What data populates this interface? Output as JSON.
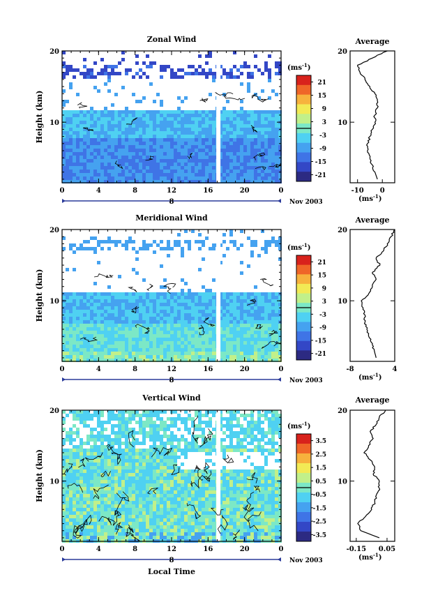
{
  "figure": {
    "xlabel": "Local Time",
    "ylabel": "Height (km)",
    "date_label": "Nov 2003",
    "day_label": "8",
    "unit_label": "(ms",
    "unit_exp": "-1",
    "unit_close": ")",
    "avg_title": "Average",
    "colorscale": [
      "#2c2a82",
      "#3347c6",
      "#3f74e6",
      "#45a2f0",
      "#4fd1f2",
      "#7ce8c6",
      "#c1f08a",
      "#f2ea55",
      "#f7b23d",
      "#ef6628",
      "#d8221c"
    ]
  },
  "chart_data": [
    {
      "type": "heatmap",
      "title": "Zonal Wind",
      "x_ticks": [
        "0",
        "4",
        "8",
        "12",
        "16",
        "20",
        "0"
      ],
      "y_ticks": [
        "10",
        "20"
      ],
      "xlim": [
        0,
        24
      ],
      "ylim": [
        1.5,
        20
      ],
      "colorbar": {
        "ticks": [
          "21",
          "15",
          "9",
          "3",
          "-3",
          "-9",
          "-15",
          "-21"
        ],
        "range": [
          -24,
          24
        ],
        "unit": "ms-1"
      },
      "average": {
        "title": "Average",
        "x_ticks": [
          "-10",
          "0"
        ],
        "y_ticks": [
          "10",
          "20"
        ],
        "xlim": [
          -13,
          5
        ],
        "ylim": [
          1.5,
          20
        ],
        "profile": [
          [
            -2,
            2
          ],
          [
            -3,
            3
          ],
          [
            -4,
            4
          ],
          [
            -5,
            5
          ],
          [
            -6,
            6
          ],
          [
            -6,
            7
          ],
          [
            -5,
            8
          ],
          [
            -4,
            9
          ],
          [
            -3,
            10
          ],
          [
            -3,
            11
          ],
          [
            -2,
            12
          ],
          [
            -2,
            13
          ],
          [
            -3,
            14
          ],
          [
            -5,
            15
          ],
          [
            -7,
            16
          ],
          [
            -9,
            17
          ],
          [
            -10,
            18
          ],
          [
            -4,
            19
          ],
          [
            2,
            20
          ]
        ],
        "xlabel": "(ms-1)"
      }
    },
    {
      "type": "heatmap",
      "title": "Meridional Wind",
      "x_ticks": [
        "0",
        "4",
        "8",
        "12",
        "16",
        "20",
        "0"
      ],
      "y_ticks": [
        "10",
        "20"
      ],
      "xlim": [
        0,
        24
      ],
      "ylim": [
        1.5,
        20
      ],
      "colorbar": {
        "ticks": [
          "21",
          "15",
          "9",
          "3",
          "-3",
          "-9",
          "-15",
          "-21"
        ],
        "range": [
          -24,
          24
        ],
        "unit": "ms-1"
      },
      "average": {
        "title": "Average",
        "x_ticks": [
          "-8",
          "4"
        ],
        "y_ticks": [
          "10",
          "20"
        ],
        "xlim": [
          -8,
          4
        ],
        "ylim": [
          1.5,
          20
        ],
        "profile": [
          [
            -1,
            2
          ],
          [
            -1.5,
            3
          ],
          [
            -2,
            4
          ],
          [
            -3,
            5
          ],
          [
            -3.5,
            6
          ],
          [
            -4,
            7
          ],
          [
            -4,
            8
          ],
          [
            -4.5,
            9
          ],
          [
            -5,
            10
          ],
          [
            -3,
            11
          ],
          [
            -2,
            12
          ],
          [
            -1,
            13
          ],
          [
            -2,
            14
          ],
          [
            0,
            15
          ],
          [
            -1,
            16
          ],
          [
            1,
            17
          ],
          [
            2,
            18
          ],
          [
            3,
            19
          ],
          [
            4,
            20
          ]
        ],
        "xlabel": "(ms-1)"
      }
    },
    {
      "type": "heatmap",
      "title": "Vertical Wind",
      "x_ticks": [
        "0",
        "4",
        "8",
        "12",
        "16",
        "20",
        "0"
      ],
      "y_ticks": [
        "10",
        "20"
      ],
      "xlim": [
        0,
        24
      ],
      "ylim": [
        1.5,
        20
      ],
      "colorbar": {
        "ticks": [
          "3.5",
          "2.5",
          "1.5",
          "0.5",
          "-0.5",
          "-1.5",
          "-2.5",
          "-3.5"
        ],
        "range": [
          -4,
          4
        ],
        "unit": "ms-1"
      },
      "average": {
        "title": "Average",
        "x_ticks": [
          "-0.15",
          "0.05"
        ],
        "y_ticks": [
          "10",
          "20"
        ],
        "xlim": [
          -0.19,
          0.1
        ],
        "ylim": [
          1.5,
          20
        ],
        "profile": [
          [
            0.0,
            2
          ],
          [
            -0.12,
            3
          ],
          [
            -0.14,
            4
          ],
          [
            -0.09,
            5
          ],
          [
            -0.05,
            6
          ],
          [
            -0.03,
            7
          ],
          [
            -0.02,
            8
          ],
          [
            0.0,
            9
          ],
          [
            0.0,
            10
          ],
          [
            -0.04,
            11
          ],
          [
            -0.03,
            12
          ],
          [
            -0.06,
            13
          ],
          [
            -0.1,
            14
          ],
          [
            -0.07,
            15
          ],
          [
            -0.04,
            16
          ],
          [
            -0.06,
            17
          ],
          [
            -0.02,
            18
          ],
          [
            0.0,
            19
          ],
          [
            0.04,
            20
          ]
        ],
        "xlabel": "(ms-1)"
      }
    }
  ]
}
